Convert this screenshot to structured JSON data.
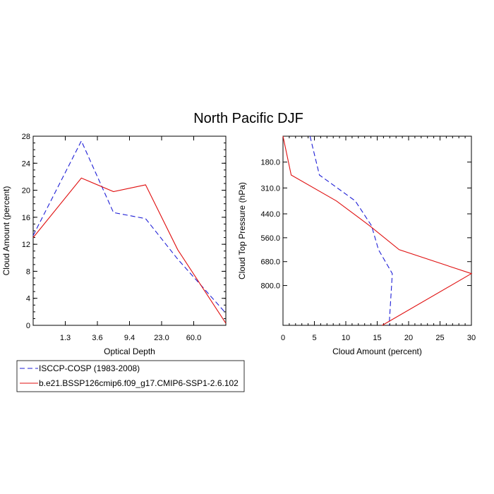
{
  "title": "North Pacific DJF",
  "colors": {
    "observed": "#1f1fd6",
    "model": "#e01010",
    "axes": "#000000"
  },
  "legend": [
    {
      "label": "ISCCP-COSP (1983-2008)",
      "color": "#1f1fd6",
      "dash": true
    },
    {
      "label": "b.e21.BSSP126cmip6.f09_g17.CMIP6-SSP1-2.6.102",
      "color": "#e01010",
      "dash": false
    }
  ],
  "chart_data": [
    {
      "type": "line",
      "xlabel": "Optical Depth",
      "ylabel": "Cloud Amount (percent)",
      "ylim": [
        0,
        28
      ],
      "yticks": [
        "0",
        "4",
        "8",
        "12",
        "16",
        "20",
        "24",
        "28"
      ],
      "xtick_labels": [
        "1.3",
        "3.6",
        "9.4",
        "23.0",
        "60.0"
      ],
      "grid": false,
      "x_bins": [
        0,
        1,
        2,
        3,
        4,
        5,
        6
      ],
      "series": [
        {
          "name": "ISCCP-COSP (1983-2008)",
          "values": [
            13.3,
            27.3,
            16.7,
            15.8,
            9.8,
            1.8
          ]
        },
        {
          "name": "b.e21.BSSP126cmip6.f09_g17.CMIP6-SSP1-2.6.102",
          "values": [
            13.0,
            21.8,
            19.8,
            20.8,
            11.2,
            0.3
          ]
        }
      ]
    },
    {
      "type": "line",
      "xlabel": "Cloud Amount (percent)",
      "ylabel": "Cloud Top Pressure (hPa)",
      "xlim": [
        0,
        30
      ],
      "xticks": [
        "0",
        "5",
        "10",
        "15",
        "20",
        "25",
        "30"
      ],
      "ytick_labels": [
        "180.0",
        "310.0",
        "440.0",
        "560.0",
        "680.0",
        "800.0"
      ],
      "grid": false,
      "pressure_levels": [
        50,
        180,
        310,
        440,
        560,
        680,
        800,
        1000
      ],
      "series": [
        {
          "name": "ISCCP-COSP (1983-2008)",
          "values": [
            4.3,
            5.8,
            11.5,
            14.1,
            15.2,
            17.4,
            16.9
          ]
        },
        {
          "name": "b.e21.BSSP126cmip6.f09_g17.CMIP6-SSP1-2.6.102",
          "values": [
            0.0,
            1.3,
            8.5,
            13.8,
            18.5,
            30.0,
            15.8
          ]
        }
      ]
    }
  ]
}
